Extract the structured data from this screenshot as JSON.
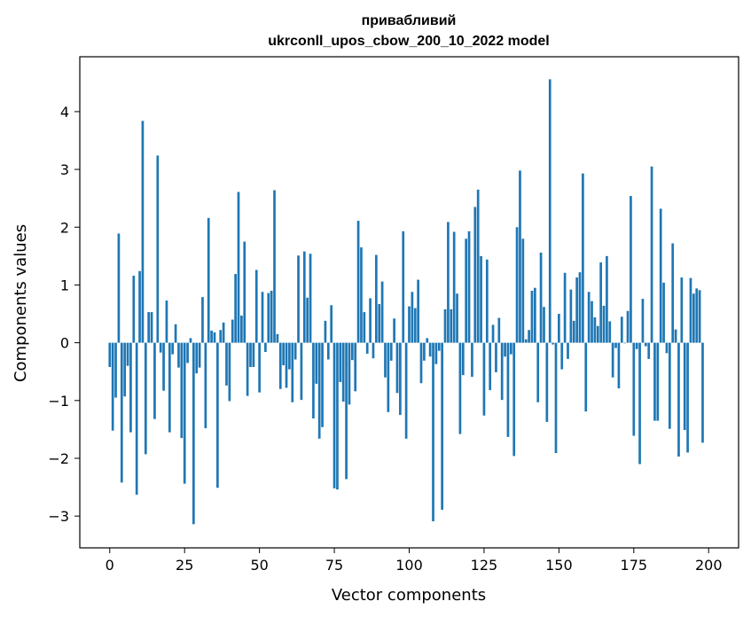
{
  "chart_data": {
    "type": "bar",
    "title": "привабливий",
    "subtitle": "ukrconll_upos_cbow_200_10_2022 model",
    "xlabel": "Vector components",
    "ylabel": "Components values",
    "xlim": [
      -10,
      210
    ],
    "ylim": [
      -3.55,
      4.95
    ],
    "xticks": [
      0,
      25,
      50,
      75,
      100,
      125,
      150,
      175,
      200
    ],
    "yticks": [
      -3,
      -2,
      -1,
      0,
      1,
      2,
      3,
      4
    ],
    "grid": false,
    "bar_color": "#1f77b4",
    "values": [
      -0.42,
      -1.52,
      -0.95,
      1.89,
      -2.42,
      -0.93,
      -0.4,
      -1.55,
      1.16,
      -2.63,
      1.24,
      3.84,
      -1.93,
      0.53,
      0.53,
      -1.32,
      3.24,
      -0.17,
      -0.83,
      0.73,
      -1.55,
      -0.2,
      0.32,
      -0.43,
      -1.65,
      -2.44,
      -0.35,
      0.08,
      -3.14,
      -0.53,
      -0.43,
      0.79,
      -1.48,
      2.16,
      0.21,
      0.18,
      -2.51,
      0.22,
      0.35,
      -0.74,
      -1.01,
      0.4,
      1.19,
      2.61,
      0.47,
      1.75,
      -0.92,
      -0.42,
      -0.42,
      1.26,
      -0.86,
      0.88,
      -0.16,
      0.86,
      0.9,
      2.64,
      0.15,
      -0.8,
      -0.39,
      -0.78,
      -0.46,
      -1.03,
      -0.29,
      1.51,
      -0.99,
      1.58,
      0.78,
      1.54,
      -1.31,
      -0.71,
      -1.66,
      -1.46,
      0.38,
      -0.29,
      0.65,
      -2.52,
      -2.54,
      -0.68,
      -1.02,
      -2.36,
      -1.07,
      -0.3,
      -0.84,
      2.11,
      1.65,
      0.53,
      -0.19,
      0.77,
      -0.27,
      1.52,
      0.67,
      1.06,
      -0.6,
      -1.2,
      -0.31,
      0.42,
      -0.87,
      -1.25,
      1.93,
      -1.66,
      0.63,
      0.88,
      0.6,
      1.09,
      -0.7,
      -0.31,
      0.08,
      -0.24,
      -3.09,
      -0.37,
      -0.14,
      -2.89,
      0.58,
      2.09,
      0.58,
      1.92,
      0.85,
      -1.58,
      -0.56,
      1.8,
      1.93,
      -0.59,
      2.35,
      2.65,
      1.5,
      -1.26,
      1.44,
      -0.82,
      0.31,
      -0.51,
      0.43,
      -0.99,
      -0.24,
      -1.63,
      -0.2,
      -1.96,
      2.0,
      2.98,
      1.8,
      0.06,
      0.22,
      0.9,
      0.95,
      -1.03,
      1.56,
      0.62,
      -1.37,
      4.56,
      -0.03,
      -1.91,
      0.5,
      -0.46,
      1.21,
      -0.28,
      0.92,
      0.38,
      1.13,
      1.22,
      2.93,
      -1.19,
      0.88,
      0.72,
      0.44,
      0.29,
      1.39,
      0.64,
      1.5,
      0.37,
      -0.6,
      -0.09,
      -0.79,
      0.45,
      -0.01,
      0.55,
      2.54,
      -1.61,
      -0.11,
      -2.1,
      0.76,
      -0.06,
      -0.28,
      3.05,
      -1.35,
      -1.35,
      2.32,
      1.04,
      -0.18,
      -1.49,
      1.72,
      0.23,
      -1.97,
      1.13,
      -1.51,
      -1.9,
      1.12,
      0.85,
      0.94,
      0.91,
      -1.73
    ]
  }
}
